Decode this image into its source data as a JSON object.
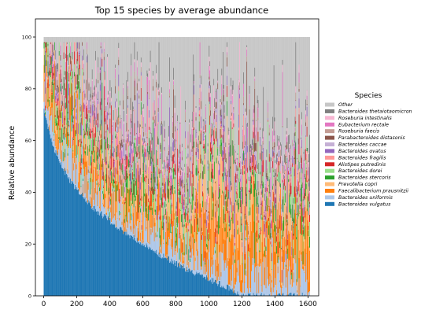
{
  "chart_data": {
    "type": "bar",
    "stacked": true,
    "title": "Top 15 species by average abundance",
    "xlabel": "",
    "ylabel": "Relative abundance",
    "xlim": [
      -50,
      1665
    ],
    "ylim": [
      0,
      107
    ],
    "x_ticks": [
      0,
      200,
      400,
      600,
      800,
      1000,
      1200,
      1400,
      1600
    ],
    "y_ticks": [
      0,
      20,
      40,
      60,
      80,
      100
    ],
    "n_samples": 1610,
    "sample_order": "sorted by Bacteroides vulgatus abundance, descending",
    "legend_title": "Species",
    "legend_position": "right",
    "series": [
      {
        "name": "Bacteroides vulgatus",
        "color": "#1f77b4",
        "profile": [
          [
            0,
            72
          ],
          [
            20,
            66
          ],
          [
            60,
            57
          ],
          [
            150,
            45
          ],
          [
            300,
            34
          ],
          [
            500,
            24
          ],
          [
            700,
            16
          ],
          [
            900,
            9
          ],
          [
            1050,
            5
          ],
          [
            1150,
            2
          ],
          [
            1200,
            0
          ],
          [
            1610,
            0
          ]
        ]
      },
      {
        "name": "Bacteroides uniformis",
        "color": "#aec7e8",
        "mean": 7
      },
      {
        "name": "Faecalibacterium prausnitzii",
        "color": "#ff7f0e",
        "mean": 6
      },
      {
        "name": "Prevotella copri",
        "color": "#ffbb78",
        "mean": 5
      },
      {
        "name": "Bacteroides stercoris",
        "color": "#2ca02c",
        "mean": 3
      },
      {
        "name": "Bacteroides dorei",
        "color": "#98df8a",
        "mean": 3
      },
      {
        "name": "Alistipes putredinis",
        "color": "#d62728",
        "mean": 2.5
      },
      {
        "name": "Bacteroides fragilis",
        "color": "#ff9896",
        "mean": 2.5
      },
      {
        "name": "Bacteroides ovatus",
        "color": "#9467bd",
        "mean": 2
      },
      {
        "name": "Bacteroides caccae",
        "color": "#c5b0d5",
        "mean": 2
      },
      {
        "name": "Parabacteroides distasonis",
        "color": "#8c564b",
        "mean": 1.5
      },
      {
        "name": "Roseburia faecis",
        "color": "#c49c94",
        "mean": 1.5
      },
      {
        "name": "Eubacterium rectale",
        "color": "#e377c2",
        "mean": 2
      },
      {
        "name": "Roseburia intestinalis",
        "color": "#f7b6d2",
        "mean": 1.5
      },
      {
        "name": "Bacteroides thetaiotaomicron",
        "color": "#7f7f7f",
        "mean": 2
      },
      {
        "name": "Other",
        "color": "#c7c7c7",
        "mean": "remainder to 100"
      }
    ]
  }
}
